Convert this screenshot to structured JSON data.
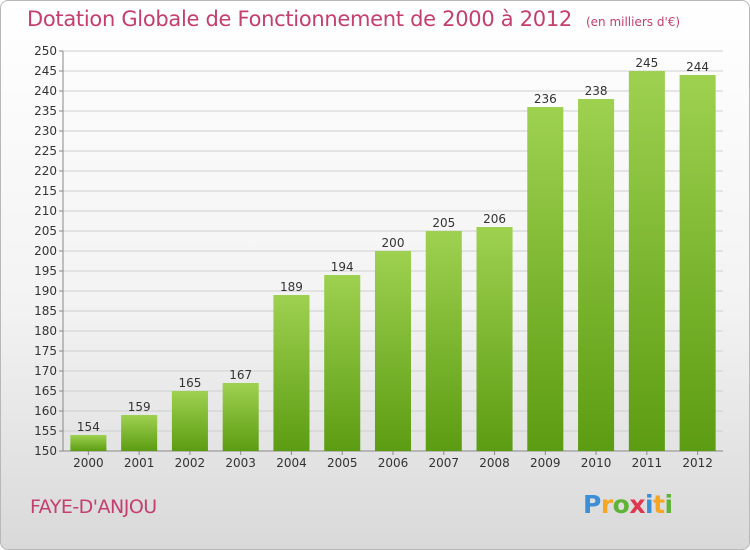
{
  "header": {
    "title": "Dotation Globale de Fonctionnement de 2000 à 2012",
    "unit": "(en milliers d'€)"
  },
  "footer": {
    "commune": "FAYE-D'ANJOU",
    "brand_letters": [
      {
        "ch": "P",
        "color": "#3a8fd6"
      },
      {
        "ch": "r",
        "color": "#f5a623"
      },
      {
        "ch": "o",
        "color": "#5fb336"
      },
      {
        "ch": "x",
        "color": "#e0364f"
      },
      {
        "ch": "i",
        "color": "#3a8fd6"
      },
      {
        "ch": "t",
        "color": "#f5a623"
      },
      {
        "ch": "i",
        "color": "#5fb336"
      }
    ]
  },
  "colors": {
    "title": "#c43e6f",
    "bar_top": "#9ed150",
    "bar_bottom": "#5c9c12",
    "grid": "#cfcfcf"
  },
  "chart_data": {
    "type": "bar",
    "title": "Dotation Globale de Fonctionnement de 2000 à 2012",
    "ylabel": "",
    "xlabel": "",
    "categories": [
      "2000",
      "2001",
      "2002",
      "2003",
      "2004",
      "2005",
      "2006",
      "2007",
      "2008",
      "2009",
      "2010",
      "2011",
      "2012"
    ],
    "values": [
      154,
      159,
      165,
      167,
      189,
      194,
      200,
      205,
      206,
      236,
      238,
      245,
      244
    ],
    "ylim": [
      150,
      250
    ],
    "ytick_step": 5,
    "grid": true,
    "legend": "none"
  }
}
